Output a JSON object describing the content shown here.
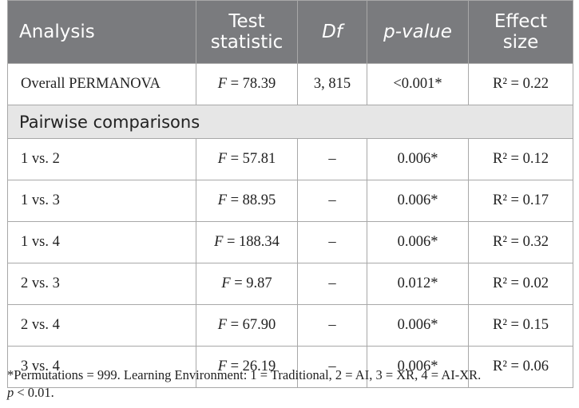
{
  "header": {
    "col1": "Analysis",
    "col2_line1": "Test",
    "col2_line2": "statistic",
    "col3": "Df",
    "col4": "p-value",
    "col5_line1": "Effect",
    "col5_line2": "size"
  },
  "overall": {
    "analysis": "Overall PERMANOVA",
    "f_symbol": "F",
    "f_value": " = 78.39",
    "df": "3, 815",
    "p_value": "<0.001*",
    "effect": "R² = 0.22"
  },
  "section_label": "Pairwise comparisons",
  "rows": [
    {
      "analysis": "1 vs. 2",
      "f_symbol": "F",
      "f_value": " = 57.81",
      "df": "–",
      "p_value": "0.006*",
      "effect": "R² = 0.12"
    },
    {
      "analysis": "1 vs. 3",
      "f_symbol": "F",
      "f_value": " = 88.95",
      "df": "–",
      "p_value": "0.006*",
      "effect": "R² = 0.17"
    },
    {
      "analysis": "1 vs. 4",
      "f_symbol": "F",
      "f_value": " = 188.34",
      "df": "–",
      "p_value": "0.006*",
      "effect": "R² = 0.32"
    },
    {
      "analysis": "2 vs. 3",
      "f_symbol": "F",
      "f_value": " = 9.87",
      "df": "–",
      "p_value": "0.012*",
      "effect": "R² = 0.02"
    },
    {
      "analysis": "2 vs. 4",
      "f_symbol": "F",
      "f_value": " = 67.90",
      "df": "–",
      "p_value": "0.006*",
      "effect": "R² = 0.15"
    },
    {
      "analysis": "3 vs. 4",
      "f_symbol": "F",
      "f_value": " = 26.19",
      "df": "–",
      "p_value": "0.006*",
      "effect": "R² = 0.06"
    }
  ],
  "footnote": {
    "line1": "*Permutations = 999. Learning Environment: 1 = Traditional, 2 = AI, 3 = XR, 4 = AI-XR.",
    "p_symbol": "p",
    "line2_rest": " < 0.01."
  }
}
